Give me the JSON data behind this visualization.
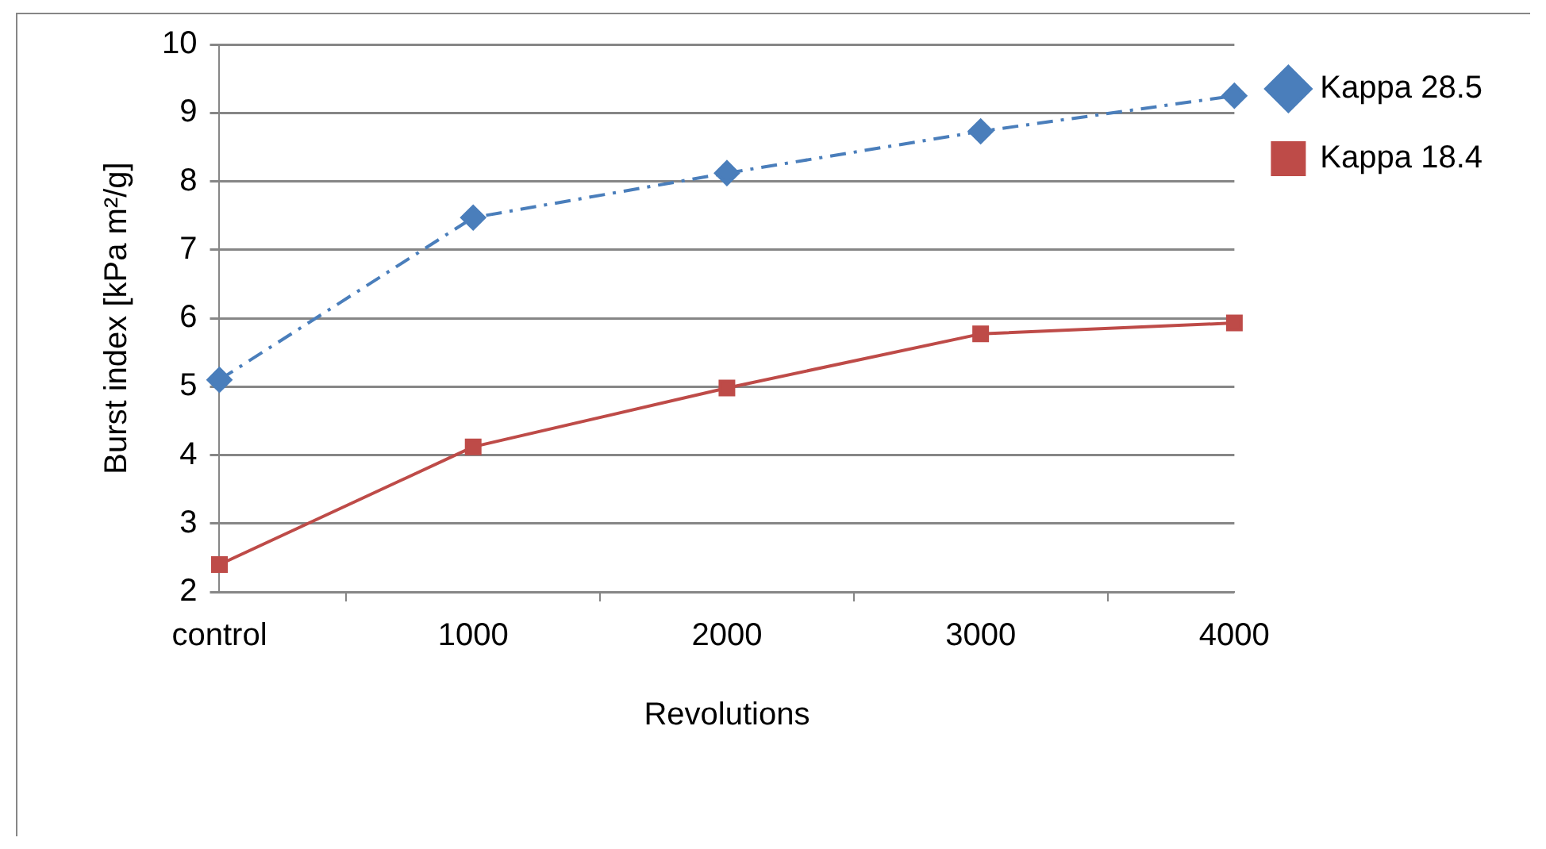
{
  "chart_data": {
    "type": "line",
    "xlabel": "Revolutions",
    "ylabel": "Burst index [kPa m²/g]",
    "categories": [
      "control",
      "1000",
      "2000",
      "3000",
      "4000"
    ],
    "series": [
      {
        "name": "Kappa 28.5",
        "color": "#4a7ebb",
        "values": [
          5.1,
          7.47,
          8.12,
          8.73,
          9.25
        ],
        "marker": "diamond",
        "line_style": "dashed"
      },
      {
        "name": "Kappa 18.4",
        "color": "#be4b48",
        "values": [
          2.4,
          4.12,
          4.98,
          5.77,
          5.93
        ],
        "marker": "square",
        "line_style": "solid"
      }
    ],
    "ylim": [
      2,
      10
    ],
    "yticks": [
      2,
      3,
      4,
      5,
      6,
      7,
      8,
      9,
      10
    ],
    "grid": "y",
    "legend": "top right"
  }
}
